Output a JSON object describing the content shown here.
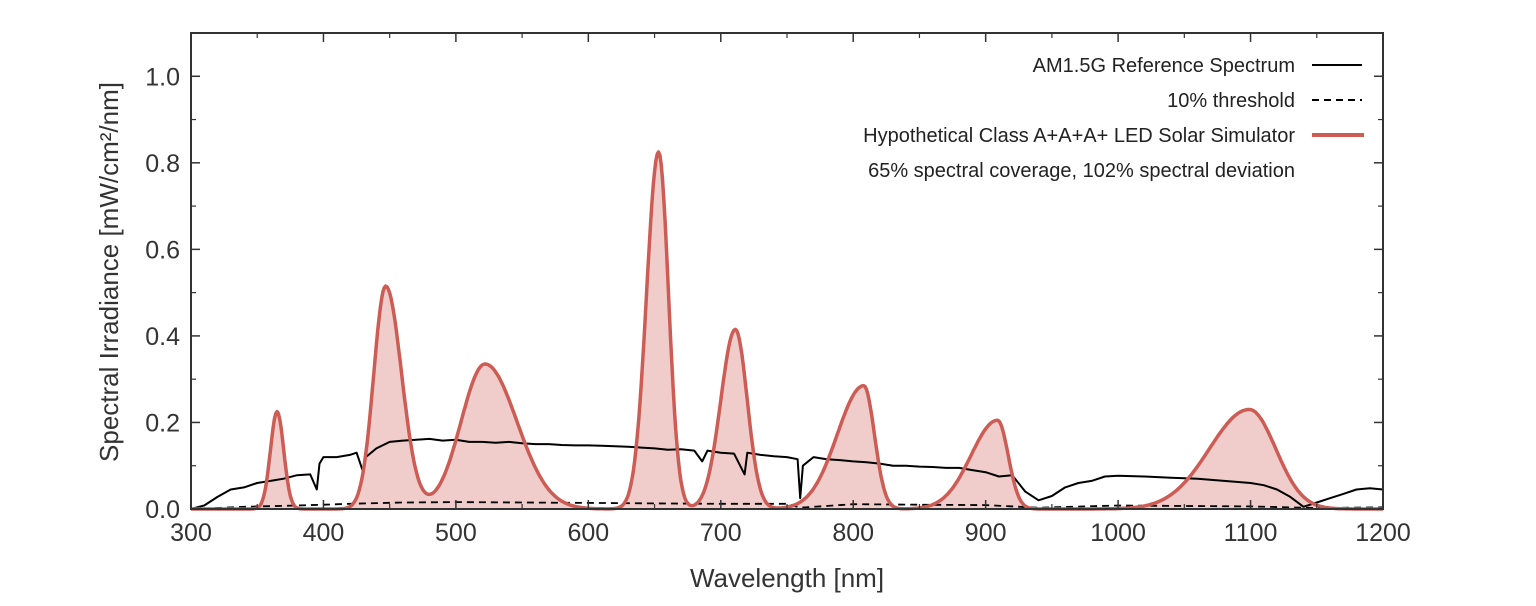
{
  "chart_data": {
    "type": "line",
    "xlabel": "Wavelength [nm]",
    "ylabel": "Spectral Irradiance [mW/cm²/nm]",
    "xlim": [
      300,
      1200
    ],
    "ylim": [
      0,
      1.1
    ],
    "x_ticks": [
      300,
      400,
      500,
      600,
      700,
      800,
      900,
      1000,
      1100,
      1200
    ],
    "y_ticks": [
      0.0,
      0.2,
      0.4,
      0.6,
      0.8,
      1.0
    ],
    "x_tick_labels": [
      "300",
      "400",
      "500",
      "600",
      "700",
      "800",
      "900",
      "1000",
      "1100",
      "1200"
    ],
    "y_tick_labels": [
      "0.0",
      "0.2",
      "0.4",
      "0.6",
      "0.8",
      "1.0"
    ],
    "grid": false,
    "legend_position": "top-right",
    "legend_entries": [
      "AM1.5G Reference Spectrum",
      "10% threshold",
      "Hypothetical Class A+A+A+ LED Solar Simulator",
      "65% spectral coverage, 102% spectral deviation"
    ],
    "series": [
      {
        "name": "AM1.5G Reference Spectrum",
        "style": "solid",
        "color": "#000000",
        "x": [
          300,
          310,
          320,
          330,
          340,
          350,
          360,
          370,
          380,
          390,
          395,
          397,
          400,
          410,
          420,
          425,
          430,
          432,
          440,
          450,
          460,
          470,
          480,
          490,
          500,
          510,
          520,
          530,
          540,
          550,
          560,
          570,
          580,
          590,
          600,
          610,
          620,
          630,
          640,
          650,
          660,
          670,
          680,
          686,
          690,
          700,
          710,
          718,
          720,
          730,
          740,
          750,
          758,
          760,
          762,
          770,
          780,
          790,
          800,
          810,
          820,
          830,
          840,
          850,
          860,
          870,
          880,
          890,
          900,
          910,
          920,
          930,
          940,
          950,
          960,
          970,
          980,
          990,
          1000,
          1020,
          1040,
          1060,
          1080,
          1100,
          1110,
          1120,
          1130,
          1140,
          1150,
          1160,
          1170,
          1180,
          1190,
          1200
        ],
        "y": [
          0.0,
          0.008,
          0.028,
          0.045,
          0.05,
          0.06,
          0.065,
          0.07,
          0.078,
          0.08,
          0.045,
          0.105,
          0.12,
          0.12,
          0.125,
          0.13,
          0.085,
          0.12,
          0.14,
          0.155,
          0.158,
          0.16,
          0.162,
          0.158,
          0.16,
          0.155,
          0.155,
          0.153,
          0.155,
          0.152,
          0.15,
          0.15,
          0.148,
          0.147,
          0.147,
          0.146,
          0.145,
          0.144,
          0.142,
          0.14,
          0.137,
          0.138,
          0.135,
          0.11,
          0.135,
          0.13,
          0.128,
          0.08,
          0.13,
          0.125,
          0.122,
          0.12,
          0.115,
          0.025,
          0.1,
          0.12,
          0.115,
          0.113,
          0.11,
          0.108,
          0.105,
          0.1,
          0.1,
          0.098,
          0.097,
          0.095,
          0.095,
          0.09,
          0.085,
          0.075,
          0.078,
          0.04,
          0.02,
          0.03,
          0.05,
          0.06,
          0.065,
          0.075,
          0.077,
          0.075,
          0.072,
          0.07,
          0.065,
          0.06,
          0.055,
          0.045,
          0.028,
          0.005,
          0.015,
          0.025,
          0.035,
          0.045,
          0.048,
          0.045
        ]
      },
      {
        "name": "10% threshold",
        "style": "dashed",
        "color": "#000000",
        "x": [
          300,
          340,
          380,
          400,
          420,
          460,
          500,
          550,
          600,
          650,
          700,
          750,
          760,
          800,
          850,
          900,
          940,
          1000,
          1050,
          1100,
          1150,
          1200
        ],
        "y": [
          0.0,
          0.005,
          0.008,
          0.01,
          0.012,
          0.015,
          0.016,
          0.015,
          0.014,
          0.013,
          0.012,
          0.012,
          0.003,
          0.011,
          0.01,
          0.009,
          0.003,
          0.008,
          0.007,
          0.006,
          0.002,
          0.004
        ]
      },
      {
        "name": "Hypothetical Class A+A+A+ LED Solar Simulator",
        "style": "filled-line",
        "color": "#cd5c55",
        "peaks": [
          {
            "center": 365,
            "height": 0.225,
            "width_left": 5,
            "width_right": 5
          },
          {
            "center": 447,
            "height": 0.515,
            "width_left": 9,
            "width_right": 12
          },
          {
            "center": 522,
            "height": 0.335,
            "width_left": 18,
            "width_right": 24
          },
          {
            "center": 653,
            "height": 0.825,
            "width_left": 9,
            "width_right": 7.5
          },
          {
            "center": 711,
            "height": 0.415,
            "width_left": 11,
            "width_right": 9
          },
          {
            "center": 808,
            "height": 0.285,
            "width_left": 20,
            "width_right": 8
          },
          {
            "center": 909,
            "height": 0.205,
            "width_left": 20,
            "width_right": 8
          },
          {
            "center": 1099,
            "height": 0.23,
            "width_left": 30,
            "width_right": 20
          }
        ]
      }
    ]
  },
  "colors": {
    "led_line": "#cd5c55",
    "led_fill": "#f0cccb",
    "reference": "#000000",
    "frame": "#333333"
  }
}
